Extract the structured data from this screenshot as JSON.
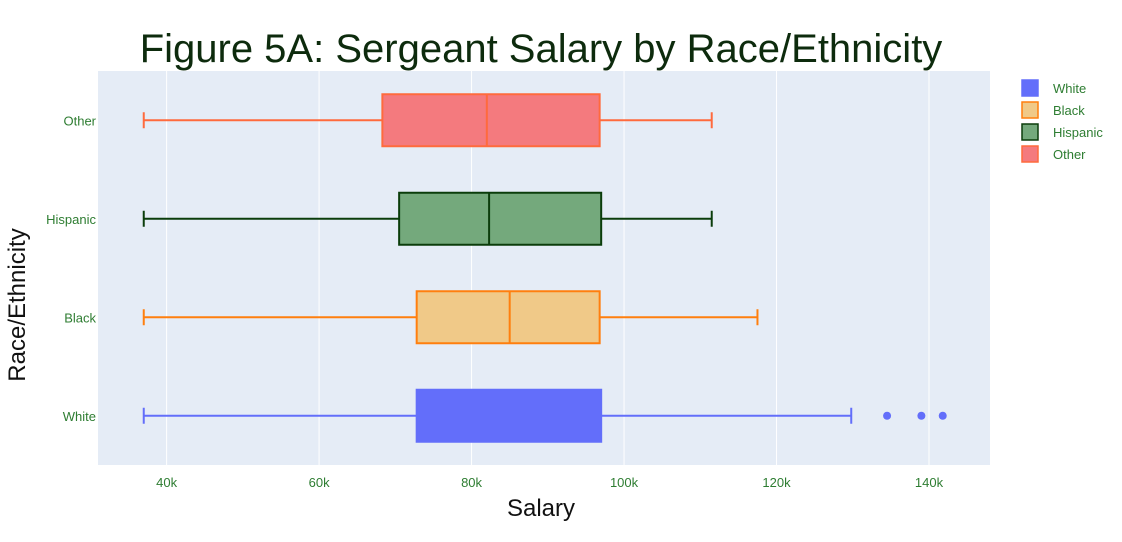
{
  "chart_data": {
    "type": "box",
    "orientation": "horizontal",
    "title": "Figure 5A: Sergeant Salary by Race/Ethnicity",
    "xlabel": "Salary",
    "ylabel": "Race/Ethnicity",
    "xlim": [
      31000,
      148000
    ],
    "x_ticks": [
      40000,
      60000,
      80000,
      100000,
      120000,
      140000
    ],
    "x_tick_labels": [
      "40k",
      "60k",
      "80k",
      "100k",
      "120k",
      "140k"
    ],
    "categories": [
      "White",
      "Black",
      "Hispanic",
      "Other"
    ],
    "grid": "vertical",
    "plot_background": "#e5ecf6",
    "legend_placement": "top-right",
    "series": [
      {
        "name": "White",
        "category": "White",
        "min": 37000,
        "q1": 72800,
        "median": 73000,
        "q3": 97000,
        "max": 129800,
        "outliers": [
          134500,
          139000,
          141800
        ],
        "fill": "#636efa",
        "line": "#636efa"
      },
      {
        "name": "Black",
        "category": "Black",
        "min": 37000,
        "q1": 72800,
        "median": 85000,
        "q3": 96800,
        "max": 117500,
        "outliers": [],
        "fill": "#f0c988",
        "line": "#ff7f0e"
      },
      {
        "name": "Hispanic",
        "category": "Hispanic",
        "min": 37000,
        "q1": 70500,
        "median": 82300,
        "q3": 97000,
        "max": 111500,
        "outliers": [],
        "fill": "#74a97c",
        "line": "#0b3d0b"
      },
      {
        "name": "Other",
        "category": "Other",
        "min": 37000,
        "q1": 68300,
        "median": 82000,
        "q3": 96800,
        "max": 111500,
        "outliers": [],
        "fill": "#f47a7e",
        "line": "#ff6a3d"
      }
    ]
  }
}
